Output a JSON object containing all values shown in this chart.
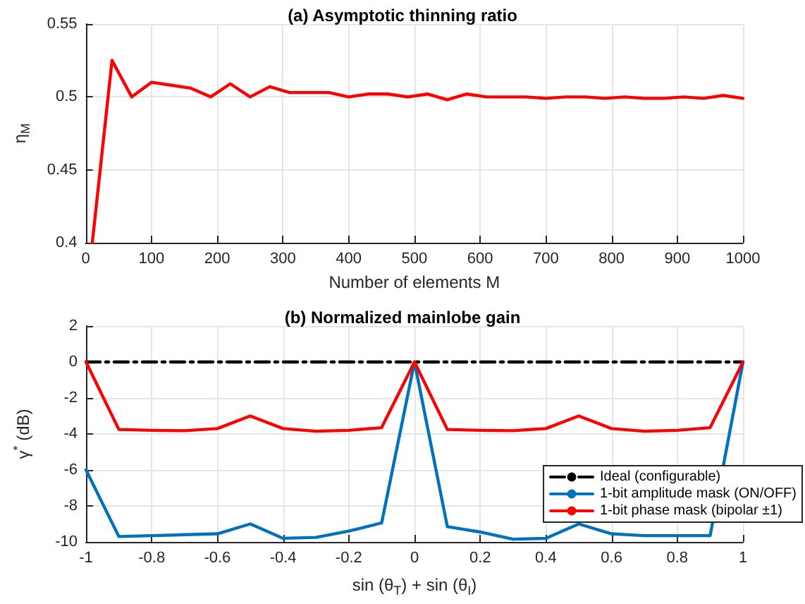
{
  "chart_data": [
    {
      "type": "line",
      "title": "(a) Asymptotic thinning ratio",
      "xlabel": "Number of elements M",
      "ylabel": "η$_{M}$",
      "x": [
        10,
        40,
        70,
        100,
        130,
        160,
        190,
        220,
        250,
        280,
        310,
        340,
        370,
        400,
        430,
        460,
        490,
        520,
        550,
        580,
        610,
        640,
        670,
        700,
        730,
        760,
        790,
        820,
        850,
        880,
        910,
        940,
        970,
        1000
      ],
      "series": [
        {
          "color": "#ff0000",
          "values": [
            0.4,
            0.525,
            0.5,
            0.51,
            0.508,
            0.506,
            0.5,
            0.509,
            0.5,
            0.507,
            0.503,
            0.503,
            0.503,
            0.5,
            0.502,
            0.502,
            0.5,
            0.502,
            0.498,
            0.502,
            0.5,
            0.5,
            0.5,
            0.499,
            0.5,
            0.5,
            0.499,
            0.5,
            0.499,
            0.499,
            0.5,
            0.499,
            0.501,
            0.499
          ]
        }
      ],
      "xlim": [
        0,
        1000
      ],
      "xticks": [
        0,
        100,
        200,
        300,
        400,
        500,
        600,
        700,
        800,
        900,
        1000
      ],
      "ylim": [
        0.4,
        0.55
      ],
      "yticks": [
        0.4,
        0.45,
        0.5,
        0.55
      ],
      "grid": true,
      "legend": false,
      "marker": "none"
    },
    {
      "type": "line",
      "title": "(b) Normalized mainlobe gain",
      "xlabel": "sin (θ$_{T}$) + sin (θ$_{I}$)",
      "ylabel": "γ$^{*}$ (dB)",
      "x": [
        -1,
        -0.9,
        -0.8,
        -0.7,
        -0.6,
        -0.5,
        -0.4,
        -0.3,
        -0.2,
        -0.1,
        0,
        0.1,
        0.2,
        0.3,
        0.4,
        0.5,
        0.6,
        0.7,
        0.8,
        0.9,
        1
      ],
      "series": [
        {
          "name": "Ideal (configurable)",
          "color": "#000000",
          "line_style": "dashed",
          "x": [
            -1,
            1
          ],
          "values": [
            0,
            0
          ]
        },
        {
          "name": "1-bit amplitude mask (ON/OFF)",
          "color": "#0072bd",
          "values": [
            -6,
            -9.7,
            -9.65,
            -9.6,
            -9.55,
            -9,
            -9.8,
            -9.75,
            -9.4,
            -8.95,
            0,
            -9.15,
            -9.45,
            -9.85,
            -9.8,
            -9,
            -9.55,
            -9.65,
            -9.65,
            -9.65,
            0
          ]
        },
        {
          "name": "1-bit phase mask (bipolar ±1)",
          "color": "#ff0000",
          "values": [
            0,
            -3.75,
            -3.8,
            -3.82,
            -3.7,
            -3,
            -3.7,
            -3.85,
            -3.8,
            -3.65,
            0,
            -3.75,
            -3.8,
            -3.82,
            -3.7,
            -3,
            -3.7,
            -3.85,
            -3.8,
            -3.65,
            0
          ]
        }
      ],
      "xlim": [
        -1,
        1
      ],
      "xticks": [
        -1,
        -0.8,
        -0.6,
        -0.4,
        -0.2,
        0,
        0.2,
        0.4,
        0.6,
        0.8,
        1
      ],
      "ylim": [
        -10,
        2
      ],
      "yticks": [
        -10,
        -8,
        -6,
        -4,
        -2,
        0,
        2
      ],
      "grid": true,
      "legend": "bottom right",
      "marker": "none",
      "line_style": "solid"
    }
  ]
}
